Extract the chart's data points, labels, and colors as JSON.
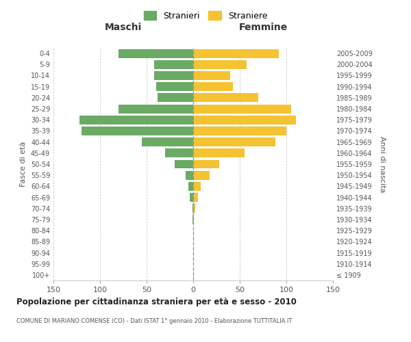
{
  "age_groups": [
    "100+",
    "95-99",
    "90-94",
    "85-89",
    "80-84",
    "75-79",
    "70-74",
    "65-69",
    "60-64",
    "55-59",
    "50-54",
    "45-49",
    "40-44",
    "35-39",
    "30-34",
    "25-29",
    "20-24",
    "15-19",
    "10-14",
    "5-9",
    "0-4"
  ],
  "birth_years": [
    "≤ 1909",
    "1910-1914",
    "1915-1919",
    "1920-1924",
    "1925-1929",
    "1930-1934",
    "1935-1939",
    "1940-1944",
    "1945-1949",
    "1950-1954",
    "1955-1959",
    "1960-1964",
    "1965-1969",
    "1970-1974",
    "1975-1979",
    "1980-1984",
    "1985-1989",
    "1990-1994",
    "1995-1999",
    "2000-2004",
    "2005-2009"
  ],
  "maschi": [
    0,
    0,
    0,
    0,
    0,
    1,
    1,
    4,
    5,
    8,
    20,
    30,
    55,
    120,
    122,
    80,
    38,
    40,
    42,
    42,
    80
  ],
  "femmine": [
    0,
    0,
    0,
    0,
    0,
    1,
    2,
    5,
    8,
    18,
    28,
    55,
    88,
    100,
    110,
    105,
    70,
    43,
    40,
    57,
    92
  ],
  "male_color": "#6aaa64",
  "female_color": "#f5c231",
  "background_color": "#ffffff",
  "grid_color": "#cccccc",
  "title": "Popolazione per cittadinanza straniera per età e sesso - 2010",
  "subtitle": "COMUNE DI MARIANO COMENSE (CO) - Dati ISTAT 1° gennaio 2010 - Elaborazione TUTTITALIA.IT",
  "xlabel_left": "Maschi",
  "xlabel_right": "Femmine",
  "ylabel_left": "Fasce di età",
  "ylabel_right": "Anni di nascita",
  "legend_male": "Stranieri",
  "legend_female": "Straniere",
  "xlim": 150,
  "bar_height": 0.8
}
